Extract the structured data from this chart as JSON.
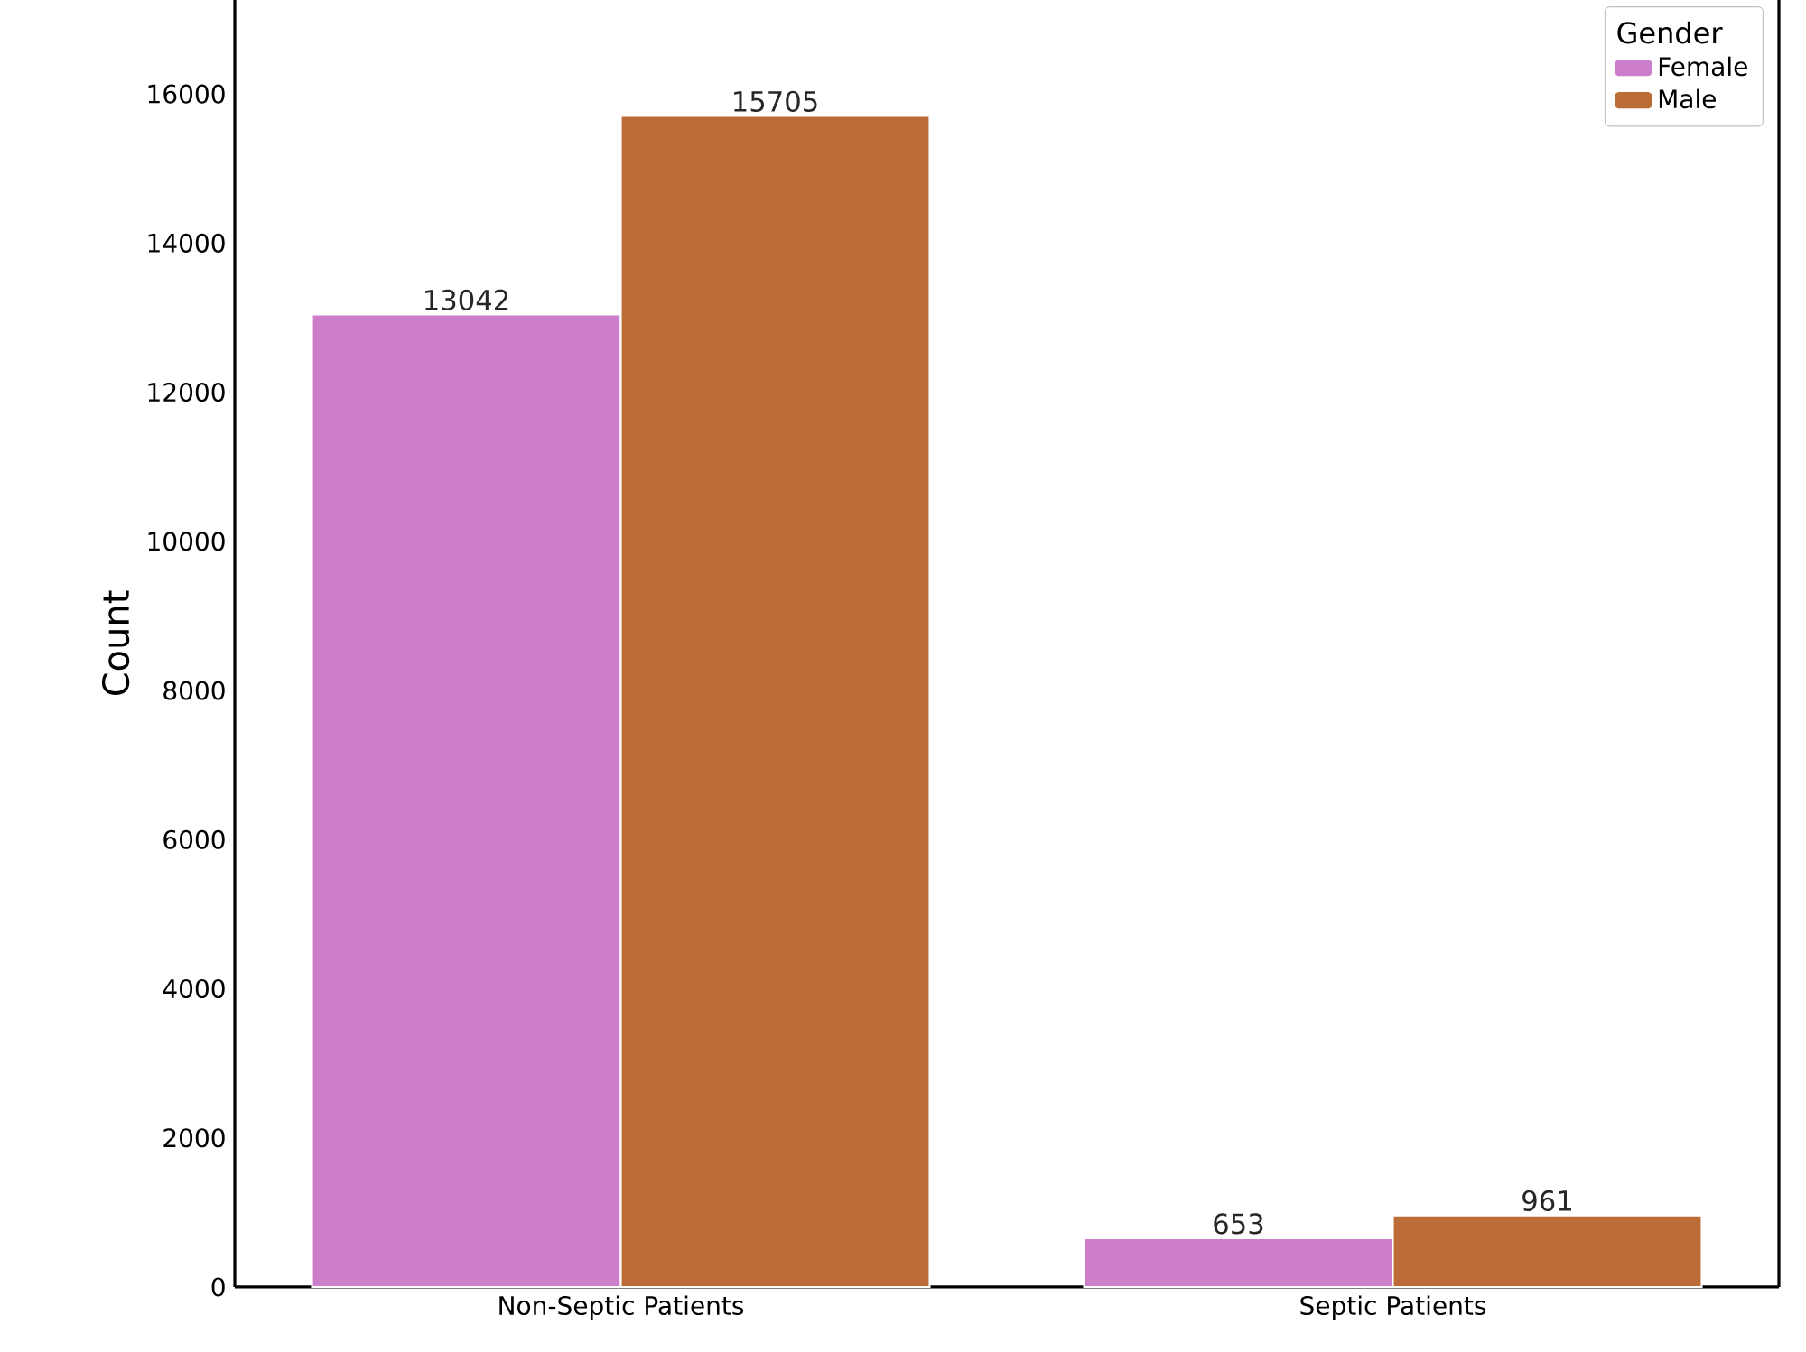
{
  "chart_data": {
    "type": "bar",
    "ylabel": "Count",
    "legend_title": "Gender",
    "categories": [
      "Non-Septic Patients",
      "Septic Patients"
    ],
    "series": [
      {
        "name": "Female",
        "color": "#cd7eca",
        "values": [
          13042,
          653
        ]
      },
      {
        "name": "Male",
        "color": "#bc6c37",
        "values": [
          15705,
          961
        ]
      }
    ],
    "ylim": [
      0,
      17260
    ],
    "yticks": [
      0,
      2000,
      4000,
      6000,
      8000,
      10000,
      12000,
      14000,
      16000
    ],
    "data_labels": true,
    "legend": "top right",
    "grid": false
  }
}
